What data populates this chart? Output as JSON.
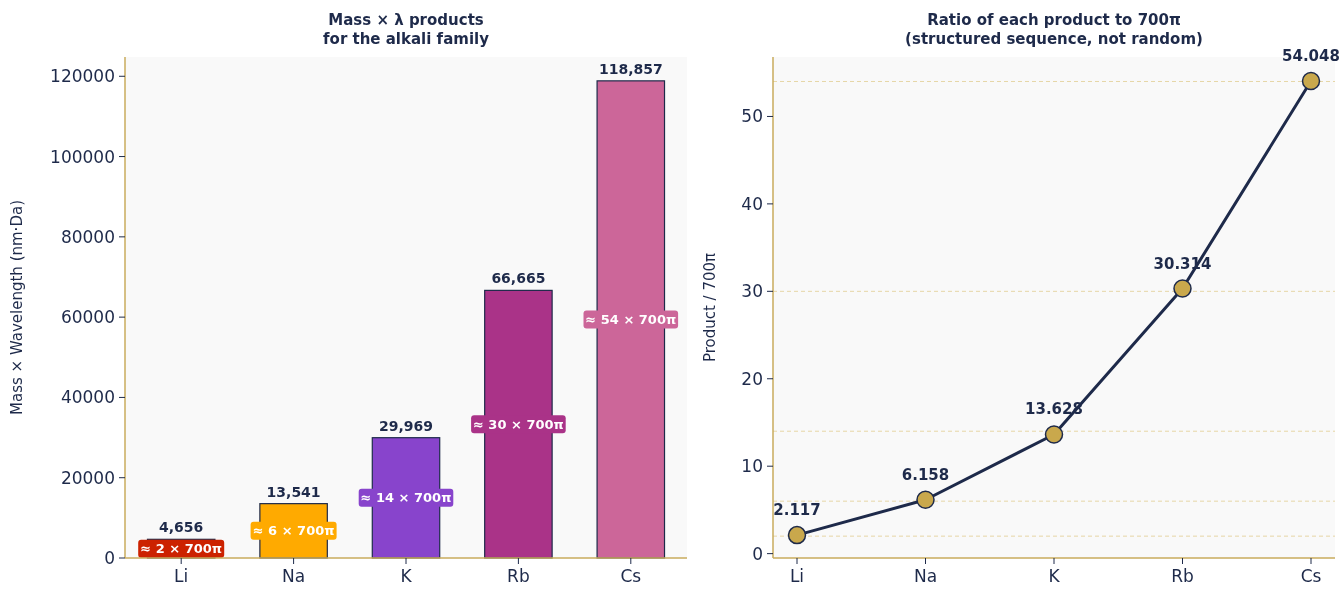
{
  "chart_data": [
    {
      "type": "bar",
      "title": "Mass × λ products\nfor the alkali family",
      "ylabel": "Mass × Wavelength (nm·Da)",
      "categories": [
        "Li",
        "Na",
        "K",
        "Rb",
        "Cs"
      ],
      "values": [
        4656,
        13541,
        29969,
        66665,
        118857
      ],
      "colors": [
        "#cc2200",
        "#ffaa00",
        "#8844cc",
        "#aa3388",
        "#cc6699"
      ],
      "value_labels": [
        "4,656",
        "13,541",
        "29,969",
        "66,665",
        "118,857"
      ],
      "annotations": [
        "≈ 2 × 700π",
        "≈ 6 × 700π",
        "≈ 14 × 700π",
        "≈ 30 × 700π",
        "≈ 54 × 700π"
      ],
      "ylim": [
        0,
        124800
      ],
      "yticks": [
        0,
        20000,
        40000,
        60000,
        80000,
        100000,
        120000
      ],
      "grid": false
    },
    {
      "type": "line",
      "title": "Ratio of each product to 700π\n(structured sequence, not random)",
      "ylabel": "Product / 700π",
      "categories": [
        "Li",
        "Na",
        "K",
        "Rb",
        "Cs"
      ],
      "series": [
        {
          "color": "#1e2a4a",
          "values": [
            2.117,
            6.158,
            13.628,
            30.314,
            54.048
          ],
          "colors": [
            "#c9a84c",
            "#c9a84c",
            "#c9a84c",
            "#c9a84c",
            "#c9a84c"
          ]
        }
      ],
      "marker": "circle",
      "data_labels": true,
      "ref_lines": [
        {
          "axis": "y",
          "value": 2,
          "color": "#e6d6a6",
          "line_style": "dashed"
        },
        {
          "axis": "y",
          "value": 6,
          "color": "#e6d6a6",
          "line_style": "dashed"
        },
        {
          "axis": "y",
          "value": 14,
          "color": "#e6d6a6",
          "line_style": "dashed"
        },
        {
          "axis": "y",
          "value": 30,
          "color": "#e6d6a6",
          "line_style": "dashed"
        },
        {
          "axis": "y",
          "value": 54,
          "color": "#e6d6a6",
          "line_style": "dashed"
        }
      ],
      "ylim": [
        -0.5,
        56.8
      ],
      "yticks": [
        0,
        10,
        20,
        30,
        40,
        50
      ],
      "grid": false
    }
  ]
}
